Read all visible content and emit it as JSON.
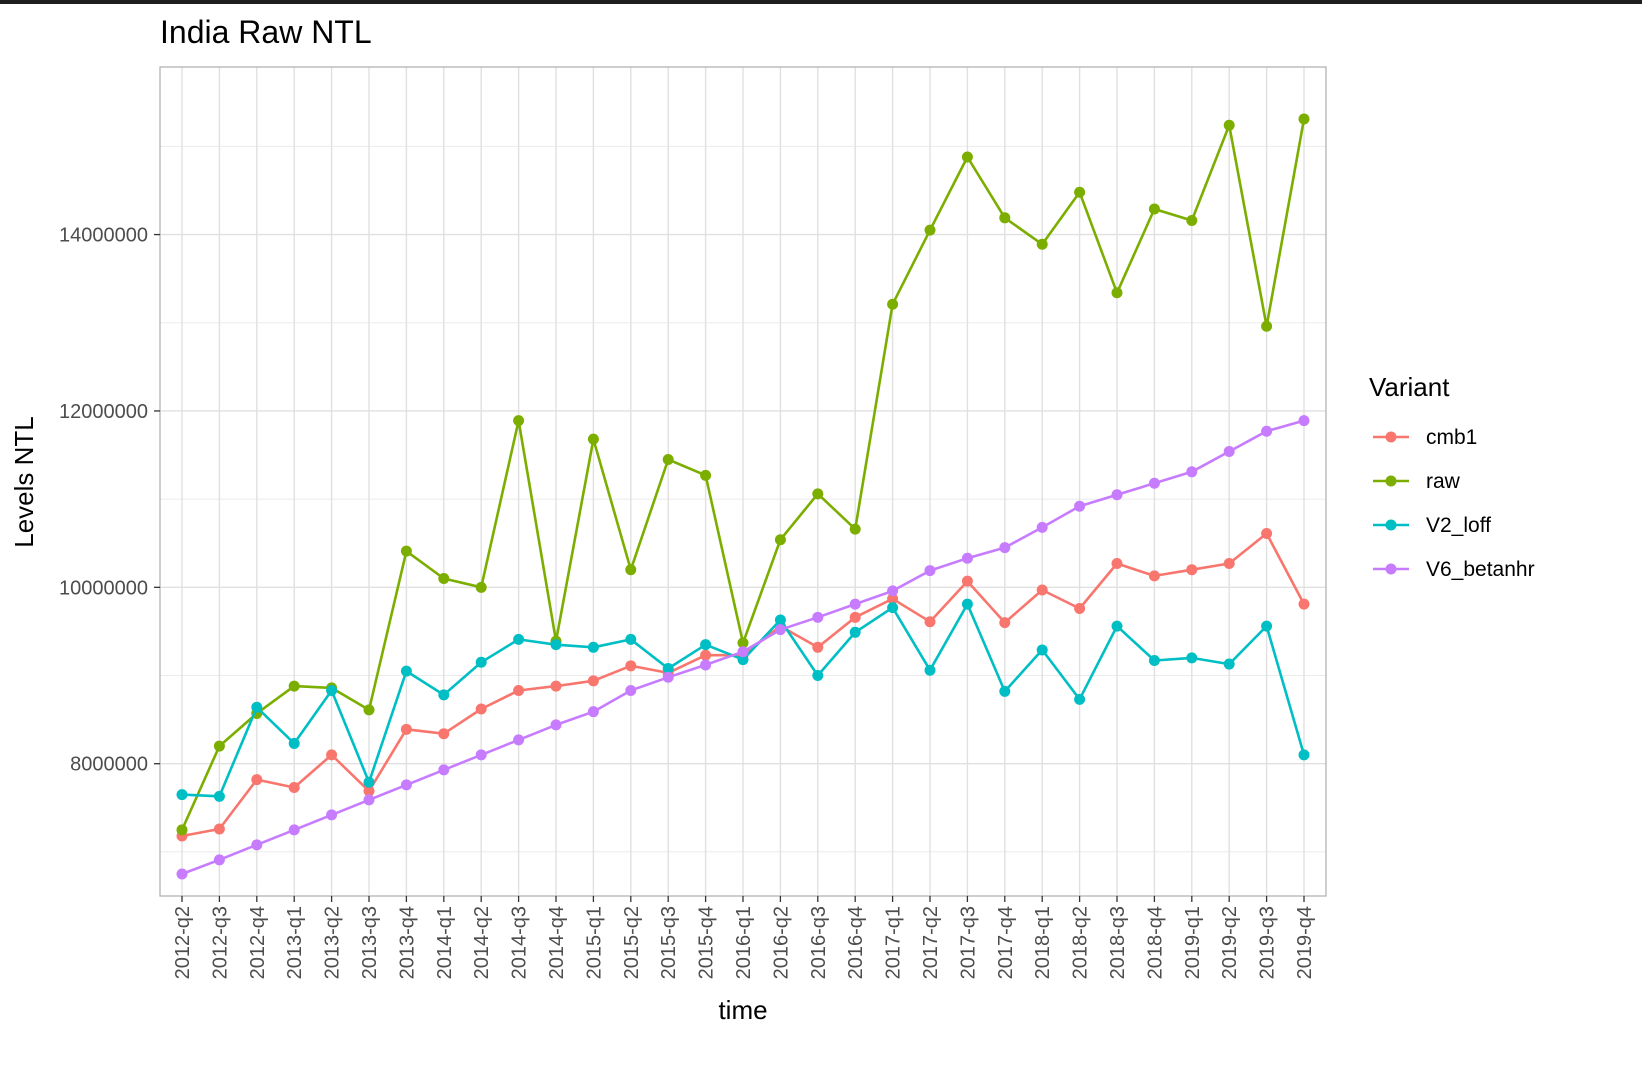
{
  "chart_data": {
    "type": "line",
    "title": "India Raw NTL",
    "xlabel": "time",
    "ylabel": "Levels NTL",
    "x": [
      "2012-q2",
      "2012-q3",
      "2012-q4",
      "2013-q1",
      "2013-q2",
      "2013-q3",
      "2013-q4",
      "2014-q1",
      "2014-q2",
      "2014-q3",
      "2014-q4",
      "2015-q1",
      "2015-q2",
      "2015-q3",
      "2015-q4",
      "2016-q1",
      "2016-q2",
      "2016-q3",
      "2016-q4",
      "2017-q1",
      "2017-q2",
      "2017-q3",
      "2017-q4",
      "2018-q1",
      "2018-q2",
      "2018-q3",
      "2018-q4",
      "2019-q1",
      "2019-q2",
      "2019-q3",
      "2019-q4"
    ],
    "yticks": [
      8000000,
      10000000,
      12000000,
      14000000
    ],
    "ytick_labels": [
      "8000000",
      "10000000",
      "12000000",
      "14000000"
    ],
    "ylim": [
      6500000,
      15900000
    ],
    "grid": true,
    "legend": {
      "title": "Variant",
      "position": "right"
    },
    "series": [
      {
        "name": "cmb1",
        "color": "#F8766D",
        "values": [
          7180000,
          7260000,
          7820000,
          7730000,
          8100000,
          7690000,
          8390000,
          8340000,
          8620000,
          8830000,
          8880000,
          8940000,
          9110000,
          9030000,
          9230000,
          9230000,
          9560000,
          9320000,
          9660000,
          9870000,
          9610000,
          10070000,
          9600000,
          9970000,
          9760000,
          10270000,
          10130000,
          10200000,
          10270000,
          10610000,
          9810000
        ]
      },
      {
        "name": "raw",
        "color": "#7CAE00",
        "values": [
          7250000,
          8200000,
          8570000,
          8880000,
          8860000,
          8610000,
          10410000,
          10100000,
          10000000,
          11890000,
          9390000,
          11680000,
          10200000,
          11450000,
          11270000,
          9370000,
          10540000,
          11060000,
          10660000,
          13210000,
          14050000,
          14880000,
          14190000,
          13890000,
          14480000,
          13340000,
          14290000,
          14160000,
          15240000,
          12960000,
          15310000
        ]
      },
      {
        "name": "V2_loff",
        "color": "#00BFC4",
        "values": [
          7650000,
          7630000,
          8640000,
          8230000,
          8830000,
          7790000,
          9050000,
          8780000,
          9150000,
          9410000,
          9350000,
          9320000,
          9410000,
          9080000,
          9350000,
          9180000,
          9630000,
          9000000,
          9490000,
          9770000,
          9060000,
          9810000,
          8820000,
          9290000,
          8730000,
          9560000,
          9170000,
          9200000,
          9130000,
          9560000,
          8100000
        ]
      },
      {
        "name": "V6_betanhr",
        "color": "#C77CFF",
        "values": [
          6750000,
          6910000,
          7080000,
          7250000,
          7420000,
          7590000,
          7760000,
          7930000,
          8100000,
          8270000,
          8440000,
          8590000,
          8830000,
          8980000,
          9120000,
          9270000,
          9520000,
          9660000,
          9810000,
          9960000,
          10190000,
          10330000,
          10450000,
          10680000,
          10920000,
          11050000,
          11180000,
          11310000,
          11540000,
          11770000,
          11890000
        ]
      }
    ]
  }
}
